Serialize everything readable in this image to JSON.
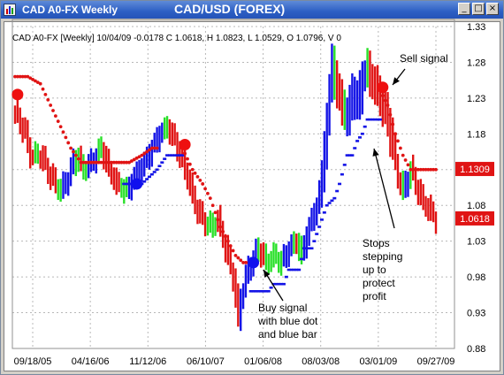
{
  "window": {
    "title": "CAD A0-FX Weekly",
    "chart_title": "CAD/USD (FOREX)",
    "controls": {
      "minimize": "_",
      "maximize": "□",
      "close": "×"
    }
  },
  "icons": {
    "app": "bar-chart-icon",
    "minimize": "minimize-icon",
    "maximize": "maximize-icon",
    "close": "close-icon"
  },
  "info_line": "CAD A0-FX [Weekly] 10/04/09  -0.0178 C 1.0618, H 1.0823, L 1.0529, O 1.0796, V 0",
  "chart_data": {
    "type": "bar",
    "ylim": [
      0.88,
      1.33
    ],
    "yticks": [
      0.88,
      0.93,
      0.98,
      1.03,
      1.08,
      1.13,
      1.18,
      1.23,
      1.28,
      1.33
    ],
    "ytick_labels": [
      "0.88",
      "0.93",
      "0.98",
      "1.03",
      "1.08",
      "1.13",
      "1.18",
      "1.23",
      "1.28",
      "1.33"
    ],
    "x_tick_labels": [
      "09/18/05",
      "04/16/06",
      "11/12/06",
      "06/10/07",
      "01/06/08",
      "08/03/08",
      "03/01/09",
      "09/27/09"
    ],
    "grid": true,
    "price_labels": [
      {
        "text": "1.1309",
        "value": 1.1309
      },
      {
        "text": "1.0618",
        "value": 1.0618
      }
    ],
    "colors": {
      "up": "#1414e6",
      "down": "#e01414",
      "neutral": "#28e028",
      "grid": "#b8b8b8",
      "price_box": "#e01414"
    },
    "series": [
      {
        "legend": "",
        "note": "weekly close path",
        "path": [
          [
            0,
            1.21
          ],
          [
            4,
            1.18
          ],
          [
            6,
            1.15
          ],
          [
            10,
            1.15
          ],
          [
            14,
            1.12
          ],
          [
            18,
            1.1
          ],
          [
            21,
            1.12
          ],
          [
            24,
            1.15
          ],
          [
            27,
            1.13
          ],
          [
            30,
            1.14
          ],
          [
            34,
            1.16
          ],
          [
            37,
            1.13
          ],
          [
            40,
            1.11
          ],
          [
            44,
            1.1
          ],
          [
            47,
            1.12
          ],
          [
            51,
            1.14
          ],
          [
            54,
            1.16
          ],
          [
            57,
            1.18
          ],
          [
            60,
            1.19
          ],
          [
            63,
            1.17
          ],
          [
            65,
            1.15
          ],
          [
            68,
            1.12
          ],
          [
            71,
            1.08
          ],
          [
            74,
            1.06
          ],
          [
            77,
            1.05
          ],
          [
            80,
            1.06
          ],
          [
            83,
            1.02
          ],
          [
            86,
            0.98
          ],
          [
            88,
            0.92
          ],
          [
            89,
            0.95
          ],
          [
            91,
            0.98
          ],
          [
            93,
            1
          ],
          [
            96,
            1.02
          ],
          [
            99,
            1
          ],
          [
            102,
            1.01
          ],
          [
            105,
            1
          ],
          [
            108,
            1.02
          ],
          [
            111,
            1.03
          ],
          [
            113,
            1.01
          ],
          [
            115,
            1.04
          ],
          [
            117,
            1.06
          ],
          [
            119,
            1.08
          ],
          [
            121,
            1.12
          ],
          [
            123,
            1.2
          ],
          [
            125,
            1.28
          ],
          [
            127,
            1.24
          ],
          [
            129,
            1.22
          ],
          [
            131,
            1.2
          ],
          [
            133,
            1.24
          ],
          [
            135,
            1.22
          ],
          [
            137,
            1.26
          ],
          [
            139,
            1.27
          ],
          [
            141,
            1.25
          ],
          [
            143,
            1.24
          ],
          [
            145,
            1.22
          ],
          [
            147,
            1.2
          ],
          [
            149,
            1.16
          ],
          [
            151,
            1.12
          ],
          [
            153,
            1.1
          ],
          [
            156,
            1.13
          ],
          [
            158,
            1.11
          ],
          [
            160,
            1.09
          ],
          [
            162,
            1.08
          ],
          [
            164,
            1.07
          ],
          [
            166,
            1.06
          ]
        ]
      }
    ],
    "stop_dots": [
      {
        "color": "red",
        "path": [
          [
            0,
            1.26
          ],
          [
            5,
            1.26
          ],
          [
            10,
            1.25
          ],
          [
            14,
            1.22
          ],
          [
            18,
            1.19
          ],
          [
            22,
            1.16
          ],
          [
            26,
            1.14
          ],
          [
            30,
            1.14
          ],
          [
            38,
            1.14
          ],
          [
            45,
            1.14
          ],
          [
            50,
            1.15
          ],
          [
            54,
            1.16
          ],
          [
            56,
            1.16
          ]
        ]
      },
      {
        "color": "blue",
        "path": [
          [
            43,
            1.11
          ],
          [
            50,
            1.11
          ],
          [
            53,
            1.12
          ],
          [
            56,
            1.13
          ],
          [
            60,
            1.15
          ],
          [
            66,
            1.15
          ]
        ]
      },
      {
        "color": "red",
        "path": [
          [
            66,
            1.16
          ],
          [
            70,
            1.13
          ],
          [
            74,
            1.11
          ],
          [
            77,
            1.09
          ],
          [
            79,
            1.07
          ],
          [
            81,
            1.05
          ],
          [
            84,
            1.03
          ],
          [
            87,
            1.01
          ],
          [
            90,
            1
          ],
          [
            93,
            1
          ]
        ]
      },
      {
        "color": "blue",
        "path": [
          [
            93,
            0.96
          ],
          [
            100,
            0.96
          ],
          [
            102,
            0.97
          ],
          [
            106,
            0.97
          ],
          [
            108,
            0.99
          ],
          [
            112,
            0.99
          ],
          [
            114,
            1.02
          ],
          [
            117,
            1.02
          ],
          [
            119,
            1.04
          ],
          [
            121,
            1.06
          ],
          [
            123,
            1.08
          ],
          [
            126,
            1.09
          ],
          [
            128,
            1.11
          ],
          [
            131,
            1.15
          ],
          [
            133,
            1.15
          ],
          [
            135,
            1.17
          ],
          [
            137,
            1.18
          ],
          [
            139,
            1.2
          ],
          [
            144,
            1.2
          ]
        ]
      },
      {
        "color": "red",
        "path": [
          [
            144,
            1.24
          ],
          [
            147,
            1.22
          ],
          [
            150,
            1.18
          ],
          [
            153,
            1.15
          ],
          [
            156,
            1.13
          ],
          [
            160,
            1.13
          ],
          [
            166,
            1.13
          ]
        ]
      }
    ],
    "signal_dots": [
      {
        "color": "red",
        "week": 1,
        "value": 1.235
      },
      {
        "color": "blue",
        "week": 48,
        "value": 1.11
      },
      {
        "color": "red",
        "week": 67,
        "value": 1.165
      },
      {
        "color": "blue",
        "week": 94,
        "value": 1.0
      },
      {
        "color": "red",
        "week": 145,
        "value": 1.245
      }
    ],
    "annotations": [
      {
        "text": "Sell signal",
        "lines": [
          "Sell signal"
        ]
      },
      {
        "text": "Stops stepping up to protect profit",
        "lines": [
          "Stops",
          "stepping",
          "up to",
          "protect",
          "profit"
        ]
      },
      {
        "text": "Buy signal with blue dot and blue bar",
        "lines": [
          "Buy signal",
          "with blue dot",
          "and blue bar"
        ]
      }
    ]
  }
}
